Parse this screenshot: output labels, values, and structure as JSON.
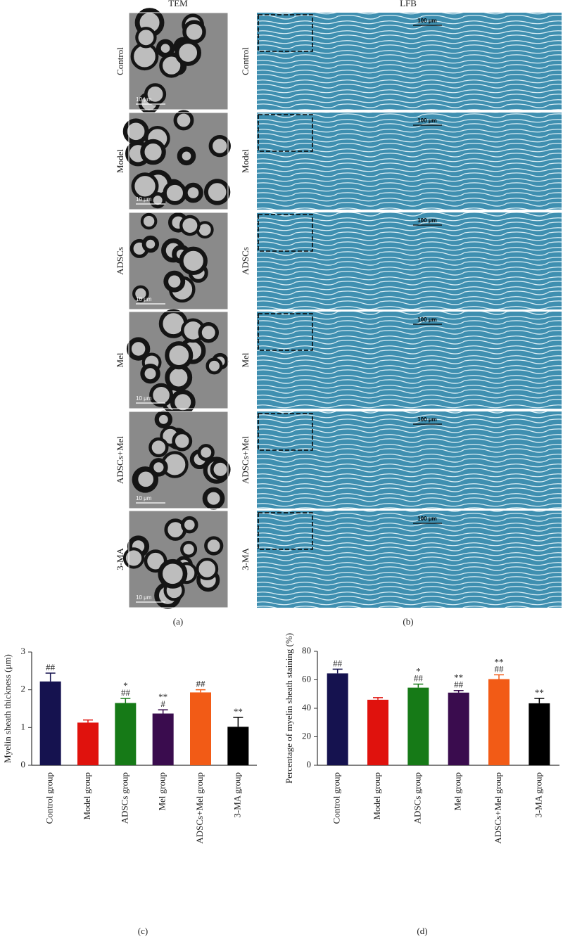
{
  "figure": {
    "tem_title": "TEM",
    "lfb_title": "LFB",
    "rows": [
      "Control",
      "Model",
      "ADSCs",
      "Mel",
      "ADSCs+Mel",
      "3-MA"
    ],
    "tem_scale": "10 μm",
    "lfb_scale": "100 μm",
    "panel_labels": [
      "(a)",
      "(b)",
      "(c)",
      "(d)"
    ]
  },
  "chart_data": [
    {
      "type": "bar",
      "ylabel": "Myelin sheath thickness (μm)",
      "categories": [
        "Control group",
        "Model group",
        "ADSCs group",
        "Mel group",
        "ADSCs+Mel group",
        "3-MA group"
      ],
      "values": [
        2.22,
        1.13,
        1.65,
        1.37,
        1.93,
        1.02
      ],
      "errors": [
        0.22,
        0.07,
        0.12,
        0.1,
        0.07,
        0.25
      ],
      "annotations": [
        [
          "##"
        ],
        [],
        [
          "*",
          "##"
        ],
        [
          "**",
          "#"
        ],
        [
          "##"
        ],
        [
          "**"
        ]
      ],
      "colors": [
        "#15124f",
        "#e0120d",
        "#167a17",
        "#3a0c4e",
        "#f25b16",
        "#000000"
      ],
      "ylim": [
        0,
        3
      ],
      "yticks": [
        0,
        1,
        2,
        3
      ]
    },
    {
      "type": "bar",
      "ylabel": "Percentage of myelin sheath staining (%)",
      "categories": [
        "Control group",
        "Model group",
        "ADSCs group",
        "Mel group",
        "ADSCs+Mel group",
        "3-MA group"
      ],
      "values": [
        64.5,
        46,
        54.5,
        51,
        60.5,
        43.5
      ],
      "errors": [
        3,
        1.5,
        2.5,
        1.5,
        3,
        3.5
      ],
      "annotations": [
        [
          "##"
        ],
        [],
        [
          "*",
          "##"
        ],
        [
          "**",
          "##"
        ],
        [
          "**",
          "##"
        ],
        [
          "**"
        ]
      ],
      "colors": [
        "#15124f",
        "#e0120d",
        "#167a17",
        "#3a0c4e",
        "#f25b16",
        "#000000"
      ],
      "ylim": [
        0,
        80
      ],
      "yticks": [
        0,
        20,
        40,
        60,
        80
      ]
    }
  ]
}
